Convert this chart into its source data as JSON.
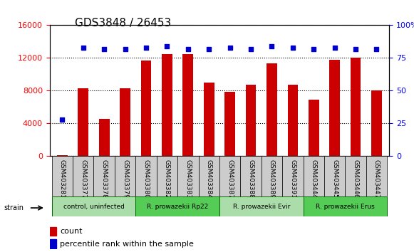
{
  "title": "GDS3848 / 26453",
  "samples": [
    "GSM403281",
    "GSM403377",
    "GSM403378",
    "GSM403379",
    "GSM403380",
    "GSM403382",
    "GSM403383",
    "GSM403384",
    "GSM403387",
    "GSM403388",
    "GSM403389",
    "GSM403391",
    "GSM403444",
    "GSM403445",
    "GSM403446",
    "GSM403447"
  ],
  "counts": [
    100,
    8300,
    4600,
    8300,
    11700,
    12500,
    12500,
    9000,
    7900,
    8700,
    11300,
    8700,
    6900,
    11800,
    12000,
    8000
  ],
  "percentile_ranks": [
    28,
    83,
    82,
    82,
    83,
    84,
    82,
    82,
    83,
    82,
    84,
    83,
    82,
    83,
    82,
    82
  ],
  "groups": [
    {
      "label": "control, uninfected",
      "start": 0,
      "end": 3,
      "color": "#aaddaa"
    },
    {
      "label": "R. prowazekii Rp22",
      "start": 4,
      "end": 7,
      "color": "#55cc55"
    },
    {
      "label": "R. prowazekii Evir",
      "start": 8,
      "end": 11,
      "color": "#aaddaa"
    },
    {
      "label": "R. prowazekii Erus",
      "start": 12,
      "end": 15,
      "color": "#55cc55"
    }
  ],
  "bar_color": "#cc0000",
  "dot_color": "#0000cc",
  "ylim_left": [
    0,
    16000
  ],
  "ylim_right": [
    0,
    100
  ],
  "yticks_left": [
    0,
    4000,
    8000,
    12000,
    16000
  ],
  "yticks_right": [
    0,
    25,
    50,
    75,
    100
  ],
  "background_color": "#ffffff",
  "plot_bg_color": "#ffffff",
  "title_fontsize": 11,
  "tick_fontsize": 8,
  "legend_fontsize": 8
}
